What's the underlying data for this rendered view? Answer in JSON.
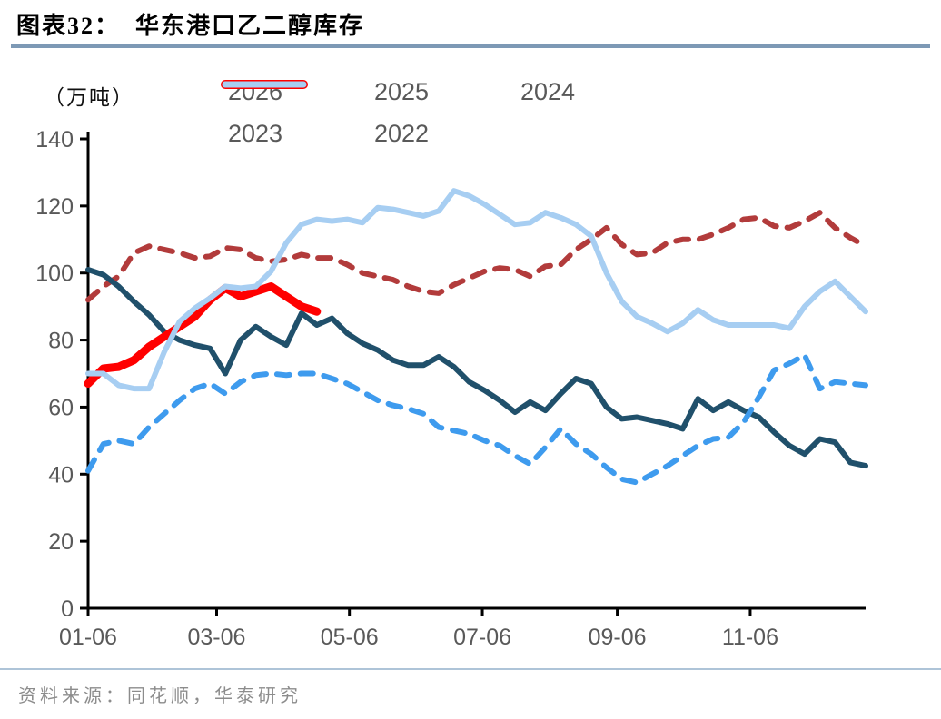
{
  "header": {
    "title": "图表32：  华东港口乙二醇库存"
  },
  "footer": {
    "source": "资料来源：同花顺，华泰研究"
  },
  "chart_data": {
    "type": "line",
    "title": "华东港口乙二醇库存",
    "unit_label": "（万吨）",
    "xlabel": "",
    "ylabel": "万吨",
    "ylim": [
      0,
      140
    ],
    "y_ticks": [
      0,
      20,
      40,
      60,
      80,
      100,
      120,
      140
    ],
    "grid": false,
    "legend_position": "top",
    "legend_rows": [
      [
        "2026",
        "2025",
        "2024"
      ],
      [
        "2023",
        "2022"
      ]
    ],
    "draw_order": [
      "2023",
      "2024",
      "2025",
      "2026",
      "2022"
    ],
    "x_tick_labels": [
      "01-06",
      "03-06",
      "05-06",
      "07-06",
      "09-06",
      "11-06"
    ],
    "x_tick_week_positions": [
      0,
      8.43,
      17.14,
      25.86,
      34.71,
      43.43
    ],
    "x": [
      "01-06",
      "01-13",
      "01-20",
      "01-27",
      "02-03",
      "02-10",
      "02-17",
      "02-24",
      "03-03",
      "03-10",
      "03-17",
      "03-24",
      "03-31",
      "04-07",
      "04-14",
      "04-21",
      "04-28",
      "05-05",
      "05-12",
      "05-19",
      "05-26",
      "06-02",
      "06-09",
      "06-16",
      "06-23",
      "06-30",
      "07-07",
      "07-14",
      "07-21",
      "07-28",
      "08-04",
      "08-11",
      "08-18",
      "08-25",
      "09-01",
      "09-08",
      "09-15",
      "09-22",
      "09-29",
      "10-06",
      "10-13",
      "10-20",
      "10-27",
      "11-03",
      "11-10",
      "11-17",
      "11-24",
      "12-01",
      "12-08",
      "12-15",
      "12-22",
      "12-29"
    ],
    "series": [
      {
        "name": "2026",
        "color": "#ff0000",
        "dash": false,
        "width": 9,
        "values": [
          67,
          71.5,
          72,
          74,
          78,
          81,
          84,
          87,
          92,
          95.5,
          93,
          94.5,
          96,
          93,
          90,
          88.5
        ]
      },
      {
        "name": "2025",
        "color": "#3e9bee",
        "dash": true,
        "width": 6,
        "values": [
          41,
          49,
          50,
          49,
          54,
          58,
          62,
          65.5,
          67,
          64,
          67.5,
          69.5,
          70,
          69.5,
          70,
          70,
          68.5,
          67,
          64.5,
          62,
          60.5,
          59.5,
          58,
          54,
          53,
          52,
          50,
          48.5,
          45.5,
          43,
          48,
          53.5,
          49,
          46,
          42,
          38.5,
          37.5,
          40,
          42.5,
          45.5,
          48.5,
          50.5,
          51,
          55.5,
          63,
          71,
          73,
          75.5,
          65.5,
          67.5,
          67,
          66.5
        ]
      },
      {
        "name": "2024",
        "color": "#20506b",
        "dash": false,
        "width": 6,
        "values": [
          101,
          99.5,
          96,
          91.5,
          87.5,
          82.5,
          80,
          78.5,
          77.5,
          70,
          80,
          84,
          81,
          78.5,
          88,
          84.5,
          86.5,
          82,
          79,
          77,
          74,
          72.5,
          72.5,
          75,
          72,
          67.5,
          65,
          62,
          58.5,
          61.5,
          59,
          64,
          68.5,
          67,
          60,
          56.5,
          57,
          56,
          55,
          53.5,
          62.5,
          59,
          61.5,
          59,
          57,
          52.5,
          48.5,
          46,
          50.5,
          49.5,
          43.5,
          42.5
        ]
      },
      {
        "name": "2023",
        "color": "#b23b3b",
        "dash": true,
        "width": 6,
        "values": [
          92,
          96,
          99,
          106,
          108,
          107,
          106,
          104.5,
          105,
          107.5,
          107,
          104.5,
          103.5,
          104,
          105.5,
          104.5,
          104.5,
          102.5,
          100,
          99,
          98,
          96,
          94.5,
          94,
          96.5,
          98.5,
          100.5,
          101.5,
          101,
          99,
          102,
          102.5,
          107,
          110,
          113.5,
          108.5,
          105.5,
          106,
          109,
          110,
          110,
          111.5,
          113.5,
          116,
          116.5,
          114,
          113.5,
          115.5,
          118,
          113.5,
          110.5,
          108
        ]
      },
      {
        "name": "2022",
        "color": "#a7cef2",
        "dash": false,
        "width": 6,
        "values": [
          70,
          70,
          66.5,
          65.5,
          65.5,
          76.5,
          85.5,
          89.5,
          92.5,
          96,
          95.5,
          96,
          100.5,
          109,
          114.5,
          116,
          115.5,
          116,
          115,
          119.5,
          119,
          118,
          117,
          118.5,
          124.5,
          123,
          120.5,
          117.5,
          114.5,
          115,
          118,
          116.5,
          114.5,
          111,
          100,
          91.5,
          87,
          85,
          82.5,
          85,
          89,
          86,
          84.5,
          84.5,
          84.5,
          84.5,
          83.5,
          90,
          94.5,
          97.5,
          93,
          88.5
        ]
      }
    ]
  }
}
